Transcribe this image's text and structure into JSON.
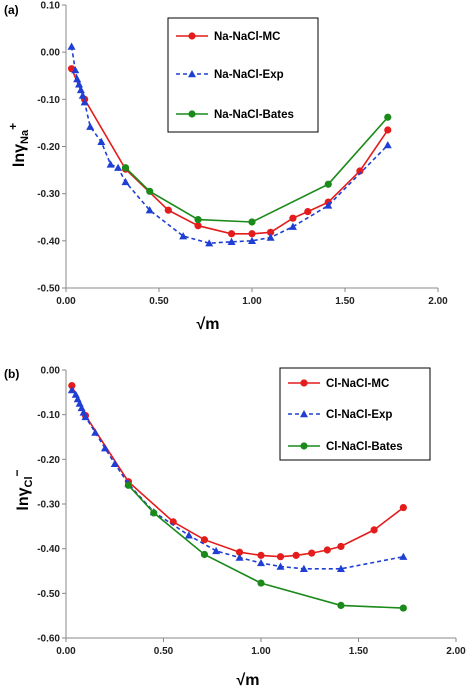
{
  "chart_data": [
    {
      "type": "line",
      "panel_label": "(a)",
      "xlabel": "√m",
      "ylabel_main": "lnγ",
      "ylabel_sub": "Na",
      "ylabel_sup": "+",
      "xlim": [
        0,
        2
      ],
      "ylim": [
        -0.5,
        0.1
      ],
      "xticks": [
        0.0,
        0.5,
        1.0,
        1.5,
        2.0
      ],
      "xtick_labels": [
        "0.00",
        "0.50",
        "1.00",
        "1.50",
        "2.00"
      ],
      "yticks": [
        0.1,
        0.0,
        -0.1,
        -0.2,
        -0.3,
        -0.4,
        -0.5
      ],
      "ytick_labels": [
        "0.10",
        "0.00",
        "-0.10",
        "-0.20",
        "-0.30",
        "-0.40",
        "-0.50"
      ],
      "grid": false,
      "legend_position": "top-right",
      "series": [
        {
          "name": "Na-NaCl-MC",
          "color": "#e41c1c",
          "marker": "circle",
          "dash": "solid",
          "x": [
            0.03,
            0.1,
            0.32,
            0.55,
            0.71,
            0.89,
            1.0,
            1.1,
            1.22,
            1.3,
            1.41,
            1.58,
            1.73
          ],
          "y": [
            -0.035,
            -0.1,
            -0.248,
            -0.335,
            -0.368,
            -0.385,
            -0.385,
            -0.382,
            -0.352,
            -0.338,
            -0.318,
            -0.252,
            -0.165
          ]
        },
        {
          "name": "Na-NaCl-Exp",
          "color": "#1f3fd4",
          "marker": "triangle",
          "dash": "dashed",
          "x": [
            0.03,
            0.05,
            0.06,
            0.07,
            0.08,
            0.09,
            0.1,
            0.13,
            0.19,
            0.24,
            0.28,
            0.32,
            0.45,
            0.63,
            0.77,
            0.89,
            1.0,
            1.1,
            1.22,
            1.41,
            1.73
          ],
          "y": [
            0.012,
            -0.038,
            -0.057,
            -0.068,
            -0.08,
            -0.092,
            -0.106,
            -0.158,
            -0.19,
            -0.238,
            -0.245,
            -0.275,
            -0.335,
            -0.39,
            -0.405,
            -0.402,
            -0.4,
            -0.393,
            -0.37,
            -0.325,
            -0.197
          ]
        },
        {
          "name": "Na-NaCl-Bates",
          "color": "#1a8a1a",
          "marker": "circle",
          "dash": "solid",
          "x": [
            0.32,
            0.45,
            0.71,
            1.0,
            1.41,
            1.73
          ],
          "y": [
            -0.245,
            -0.295,
            -0.355,
            -0.36,
            -0.28,
            -0.138
          ]
        }
      ]
    },
    {
      "type": "line",
      "panel_label": "(b)",
      "xlabel": "√m",
      "ylabel_main": "lnγ",
      "ylabel_sub": "Cl",
      "ylabel_sup": "−",
      "xlim": [
        0,
        2
      ],
      "ylim": [
        -0.6,
        0.0
      ],
      "xticks": [
        0.0,
        0.5,
        1.0,
        1.5,
        2.0
      ],
      "xtick_labels": [
        "0.00",
        "0.50",
        "1.00",
        "1.50",
        "2.00"
      ],
      "yticks": [
        0.0,
        -0.1,
        -0.2,
        -0.3,
        -0.4,
        -0.5,
        -0.6
      ],
      "ytick_labels": [
        "0.00",
        "-0.10",
        "-0.20",
        "-0.30",
        "-0.40",
        "-0.50",
        "-0.60"
      ],
      "grid": false,
      "legend_position": "top-right",
      "series": [
        {
          "name": "Cl-NaCl-MC",
          "color": "#e41c1c",
          "marker": "circle",
          "dash": "solid",
          "x": [
            0.03,
            0.1,
            0.32,
            0.55,
            0.71,
            0.89,
            1.0,
            1.1,
            1.18,
            1.26,
            1.34,
            1.41,
            1.58,
            1.73
          ],
          "y": [
            -0.035,
            -0.102,
            -0.25,
            -0.34,
            -0.38,
            -0.408,
            -0.415,
            -0.418,
            -0.415,
            -0.41,
            -0.403,
            -0.395,
            -0.358,
            -0.308
          ]
        },
        {
          "name": "Cl-NaCl-Exp",
          "color": "#1f3fd4",
          "marker": "triangle",
          "dash": "dashed",
          "x": [
            0.03,
            0.05,
            0.06,
            0.07,
            0.08,
            0.09,
            0.1,
            0.15,
            0.2,
            0.25,
            0.32,
            0.45,
            0.63,
            0.77,
            0.89,
            1.0,
            1.1,
            1.22,
            1.41,
            1.73
          ],
          "y": [
            -0.045,
            -0.055,
            -0.065,
            -0.075,
            -0.085,
            -0.095,
            -0.105,
            -0.14,
            -0.175,
            -0.21,
            -0.255,
            -0.318,
            -0.37,
            -0.405,
            -0.42,
            -0.432,
            -0.44,
            -0.445,
            -0.445,
            -0.418
          ]
        },
        {
          "name": "Cl-NaCl-Bates",
          "color": "#1a8a1a",
          "marker": "circle",
          "dash": "solid",
          "x": [
            0.32,
            0.45,
            0.71,
            1.0,
            1.41,
            1.73
          ],
          "y": [
            -0.258,
            -0.32,
            -0.413,
            -0.477,
            -0.527,
            -0.533
          ]
        }
      ]
    }
  ]
}
